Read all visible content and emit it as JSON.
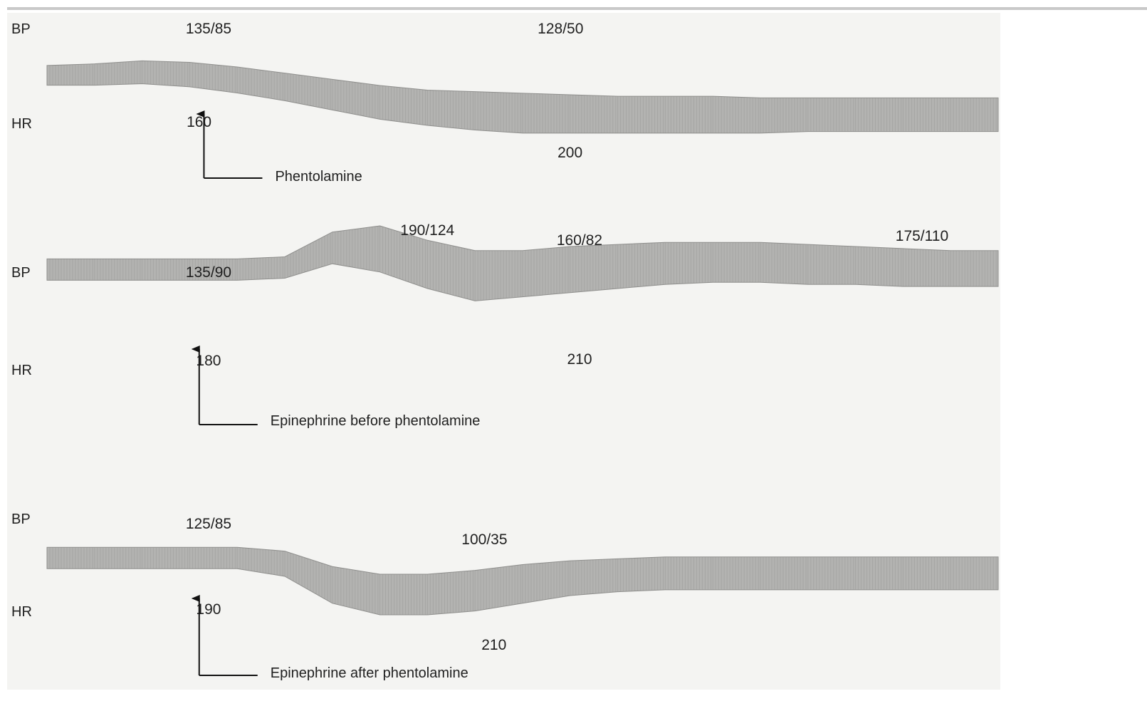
{
  "colors": {
    "paper": "#f4f4f2",
    "trace_fill": "#b3b3b1",
    "trace_tick": "#8f8f8d",
    "text": "#1f1f1f",
    "arrow": "#111111",
    "topbar": "#c9c9c9"
  },
  "chart_data": [
    {
      "type": "area",
      "title": "",
      "trace_labels": {
        "bp": "BP",
        "hr": "HR"
      },
      "x": [
        0,
        5,
        10,
        15,
        20,
        25,
        30,
        35,
        40,
        45,
        50,
        55,
        60,
        65,
        70,
        75,
        80,
        85,
        90,
        95,
        100
      ],
      "series": [
        {
          "values_upper": [
            83,
            84,
            86,
            85,
            82,
            78,
            74,
            70,
            67,
            66,
            65,
            64,
            63,
            63,
            63,
            62,
            62,
            62,
            62,
            62,
            62
          ],
          "values_lower": [
            84,
            84,
            85,
            83,
            79,
            74,
            68,
            62,
            58,
            55,
            53,
            53,
            53,
            53,
            53,
            53,
            54,
            54,
            54,
            54,
            54
          ]
        }
      ],
      "ylim": [
        40,
        100
      ],
      "readings": [
        {
          "trace": "bp",
          "text": "135/85",
          "x": 11
        },
        {
          "trace": "bp",
          "text": "128/50",
          "x": 48
        },
        {
          "trace": "hr",
          "text": "160",
          "x": 10
        },
        {
          "trace": "hr",
          "text": "200",
          "x": 49
        }
      ],
      "event": {
        "x": 16.5,
        "label": "Phentolamine"
      }
    },
    {
      "type": "area",
      "title": "",
      "trace_labels": {
        "bp": "BP",
        "hr": "HR"
      },
      "x": [
        0,
        5,
        10,
        15,
        20,
        25,
        30,
        35,
        40,
        45,
        50,
        55,
        60,
        65,
        70,
        75,
        80,
        85,
        90,
        95,
        100
      ],
      "series": [
        {
          "values_upper": [
            84,
            84,
            84,
            84,
            84,
            85,
            97,
            100,
            93,
            88,
            88,
            90,
            91,
            92,
            92,
            92,
            91,
            90,
            89,
            88,
            88
          ],
          "values_lower": [
            84,
            84,
            84,
            84,
            84,
            85,
            92,
            88,
            80,
            74,
            76,
            78,
            80,
            82,
            83,
            83,
            82,
            82,
            81,
            81,
            81
          ]
        }
      ],
      "ylim": [
        40,
        100
      ],
      "readings": [
        {
          "trace": "bp",
          "text": "135/90",
          "x": 11
        },
        {
          "trace": "bp",
          "text": "190/124",
          "x": 34
        },
        {
          "trace": "bp",
          "text": "160/82",
          "x": 50
        },
        {
          "trace": "bp",
          "text": "175/110",
          "x": 86
        },
        {
          "trace": "hr",
          "text": "180",
          "x": 11
        },
        {
          "trace": "hr",
          "text": "210",
          "x": 50
        }
      ],
      "event": {
        "x": 16.0,
        "label": "Epinephrine before phentolamine"
      }
    },
    {
      "type": "area",
      "title": "",
      "trace_labels": {
        "bp": "BP",
        "hr": "HR"
      },
      "x": [
        0,
        5,
        10,
        15,
        20,
        25,
        30,
        35,
        40,
        45,
        50,
        55,
        60,
        65,
        70,
        75,
        80,
        85,
        90,
        95,
        100
      ],
      "series": [
        {
          "values_upper": [
            84,
            84,
            84,
            84,
            84,
            82,
            74,
            70,
            70,
            72,
            75,
            77,
            78,
            79,
            79,
            79,
            79,
            79,
            79,
            79,
            79
          ],
          "values_lower": [
            84,
            84,
            84,
            84,
            84,
            80,
            66,
            60,
            60,
            62,
            66,
            70,
            72,
            73,
            73,
            73,
            73,
            73,
            73,
            73,
            73
          ]
        }
      ],
      "ylim": [
        40,
        100
      ],
      "readings": [
        {
          "trace": "bp",
          "text": "125/85",
          "x": 11
        },
        {
          "trace": "bp",
          "text": "100/35",
          "x": 40
        },
        {
          "trace": "hr",
          "text": "190",
          "x": 11
        },
        {
          "trace": "hr",
          "text": "210",
          "x": 41
        }
      ],
      "event": {
        "x": 16.0,
        "label": "Epinephrine after phentolamine"
      }
    }
  ]
}
